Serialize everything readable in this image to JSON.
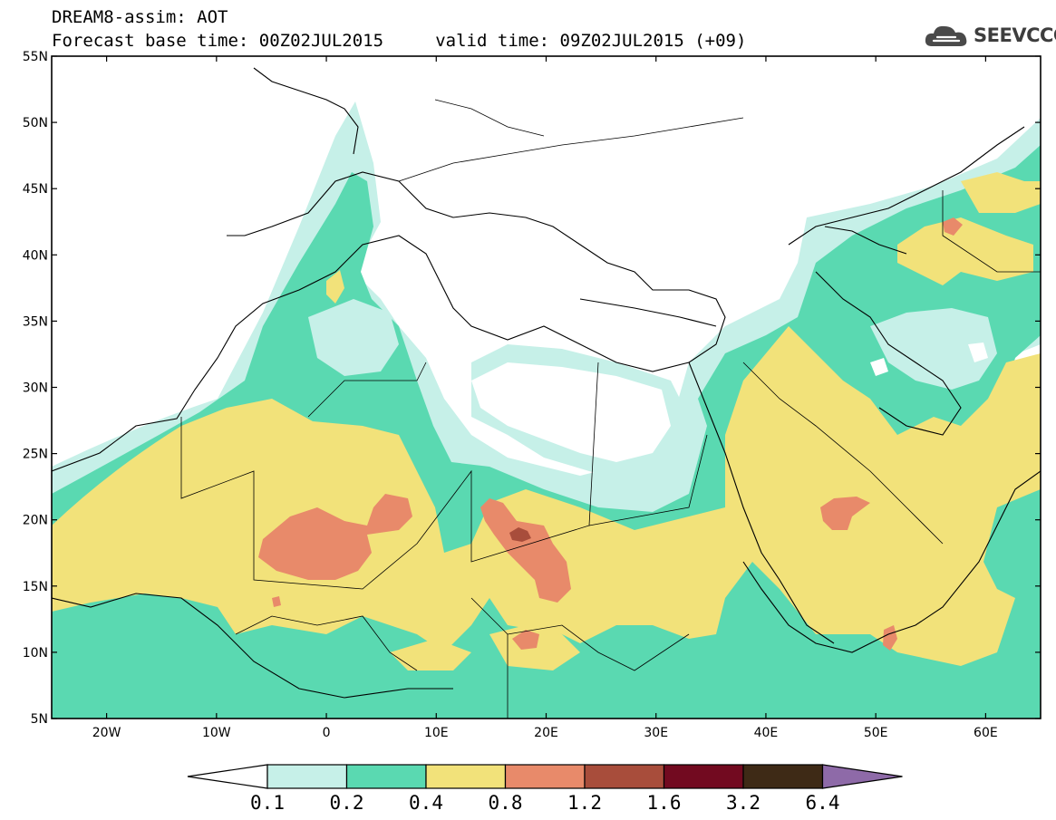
{
  "header": {
    "line1": "DREAM8-assim: AOT",
    "line2": "Forecast base time: 00Z02JUL2015     valid time: 09Z02JUL2015 (+09)"
  },
  "logo": {
    "text": "SEEVCCC",
    "icon": "cloud-icon"
  },
  "map": {
    "lon_range": [
      -25,
      65
    ],
    "lat_range": [
      5,
      55
    ],
    "lat_labels": [
      "55N",
      "50N",
      "45N",
      "40N",
      "35N",
      "30N",
      "25N",
      "20N",
      "15N",
      "10N",
      "5N"
    ],
    "lon_labels": [
      "20W",
      "10W",
      "0",
      "10E",
      "20E",
      "30E",
      "40E",
      "50E",
      "60E"
    ]
  },
  "legend": {
    "labels": [
      "0.1",
      "0.2",
      "0.4",
      "0.8",
      "1.2",
      "1.6",
      "3.2",
      "6.4"
    ],
    "colors": [
      "#c6f0e8",
      "#5ad9b1",
      "#f2e27a",
      "#e88a6a",
      "#a84d3b",
      "#720a20",
      "#3e2a16"
    ],
    "under_color": "#ffffff",
    "over_color": "#8e6aa8"
  }
}
